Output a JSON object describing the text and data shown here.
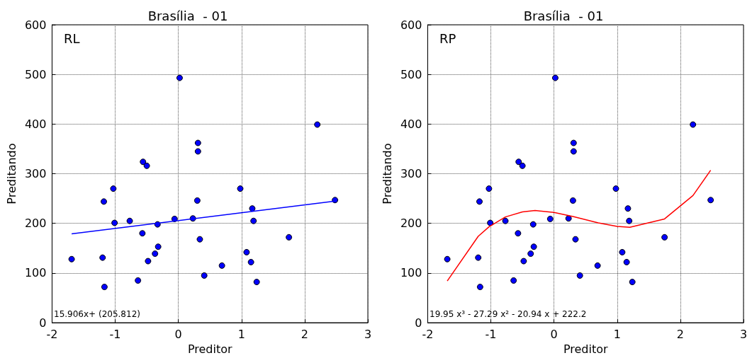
{
  "chart_data": [
    {
      "type": "scatter",
      "title": "Brasília  - 01",
      "xlabel": "Preditor",
      "ylabel": "Preditando",
      "xlim": [
        -2,
        3
      ],
      "xticks": [
        -2,
        -1,
        0,
        1,
        2,
        3
      ],
      "ylim": [
        0,
        600
      ],
      "yticks": [
        0,
        100,
        200,
        300,
        400,
        500,
        600
      ],
      "grid": true,
      "marker": "circle",
      "annotations": [
        "RL",
        "15.906x+ (205.812)"
      ],
      "series": [
        {
          "color": "#0000ff",
          "x": [
            -1.69,
            -1.2,
            -1.18,
            -1.17,
            -1.03,
            -1.01,
            -0.77,
            -0.64,
            -0.57,
            -0.56,
            -0.5,
            -0.48,
            -0.37,
            -0.33,
            -0.32,
            -0.06,
            0.02,
            0.23,
            0.3,
            0.31,
            0.31,
            0.34,
            0.41,
            0.69,
            0.98,
            1.08,
            1.15,
            1.17,
            1.19,
            1.24,
            1.75,
            2.2,
            2.48
          ],
          "values": [
            128,
            131,
            244,
            72,
            270,
            201,
            205,
            85,
            180,
            324,
            316,
            124,
            139,
            198,
            153,
            209,
            493,
            210,
            246,
            362,
            345,
            168,
            95,
            115,
            270,
            142,
            122,
            230,
            205,
            82,
            172,
            399,
            247
          ]
        },
        {
          "type": "line",
          "color": "#0000ff",
          "marker": "none",
          "line_style": "solid",
          "x": [
            -1.69,
            2.48
          ],
          "values": [
            179,
            245
          ]
        }
      ]
    },
    {
      "type": "scatter",
      "title": "Brasília  - 01",
      "xlabel": "Preditor",
      "ylabel": "Preditando",
      "xlim": [
        -2,
        3
      ],
      "xticks": [
        -2,
        -1,
        0,
        1,
        2,
        3
      ],
      "ylim": [
        0,
        600
      ],
      "yticks": [
        0,
        100,
        200,
        300,
        400,
        500,
        600
      ],
      "grid": true,
      "marker": "circle",
      "annotations": [
        "RP",
        "19.95 x³ - 27.29 x² - 20.94 x + 222.2"
      ],
      "series": [
        {
          "color": "#0000ff",
          "x": [
            -1.69,
            -1.2,
            -1.18,
            -1.17,
            -1.03,
            -1.01,
            -0.77,
            -0.64,
            -0.57,
            -0.56,
            -0.5,
            -0.48,
            -0.37,
            -0.33,
            -0.32,
            -0.06,
            0.02,
            0.23,
            0.3,
            0.31,
            0.31,
            0.34,
            0.41,
            0.69,
            0.98,
            1.08,
            1.15,
            1.17,
            1.19,
            1.24,
            1.75,
            2.2,
            2.48
          ],
          "values": [
            128,
            131,
            244,
            72,
            270,
            201,
            205,
            85,
            180,
            324,
            316,
            124,
            139,
            198,
            153,
            209,
            493,
            210,
            246,
            362,
            345,
            168,
            95,
            115,
            270,
            142,
            122,
            230,
            205,
            82,
            172,
            399,
            247
          ]
        },
        {
          "type": "line",
          "color": "#ff0000",
          "marker": "none",
          "line_style": "solid",
          "x": [
            -1.69,
            -1.2,
            -1.03,
            -0.77,
            -0.5,
            -0.3,
            0,
            0.3,
            0.7,
            1.0,
            1.2,
            1.75,
            2.2,
            2.48
          ],
          "values": [
            84,
            174,
            193,
            213,
            223,
            226,
            222,
            214,
            201,
            194,
            192,
            209,
            256,
            307
          ]
        }
      ]
    }
  ]
}
